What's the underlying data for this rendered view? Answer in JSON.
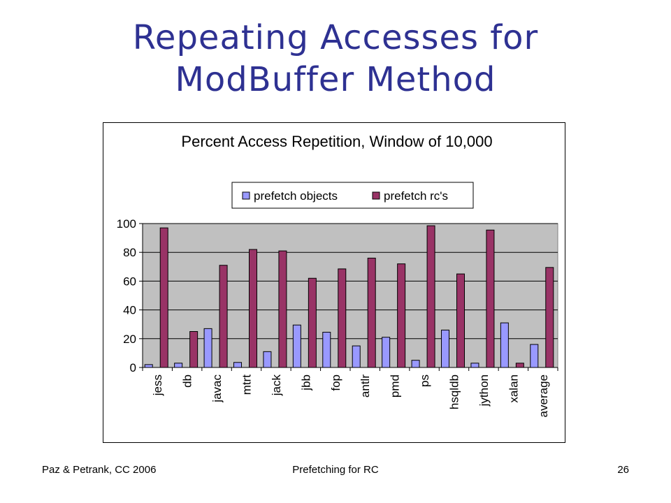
{
  "slide": {
    "title_line1": "Repeating Accesses for",
    "title_line2": "ModBuffer Method"
  },
  "footer": {
    "left": "Paz & Petrank, CC 2006",
    "center": "Prefetching for RC",
    "right": "26"
  },
  "colors": {
    "title": "#2e3192",
    "series1": "#9999ff",
    "series2": "#993366",
    "plot_bg": "#c0c0c0"
  },
  "chart_data": {
    "type": "bar",
    "title": "Percent Access Repetition, Window of 10,000",
    "xlabel": "",
    "ylabel": "",
    "ylim": [
      0,
      100
    ],
    "yticks": [
      0,
      20,
      40,
      60,
      80,
      100
    ],
    "grid": true,
    "legend_position": "top-right",
    "categories": [
      "jess",
      "db",
      "javac",
      "mtrt",
      "jack",
      "jbb",
      "fop",
      "antlr",
      "pmd",
      "ps",
      "hsqldb",
      "jython",
      "xalan",
      "average"
    ],
    "series": [
      {
        "name": "prefetch objects",
        "color": "#9999ff",
        "values": [
          2,
          3,
          27,
          3.5,
          11,
          29.5,
          24.5,
          15,
          21,
          5,
          26,
          3,
          31,
          16
        ]
      },
      {
        "name": "prefetch rc's",
        "color": "#993366",
        "values": [
          97,
          25,
          71,
          82,
          81,
          62,
          68.5,
          76,
          72,
          98.5,
          65,
          95.5,
          3,
          69.5
        ]
      }
    ]
  }
}
